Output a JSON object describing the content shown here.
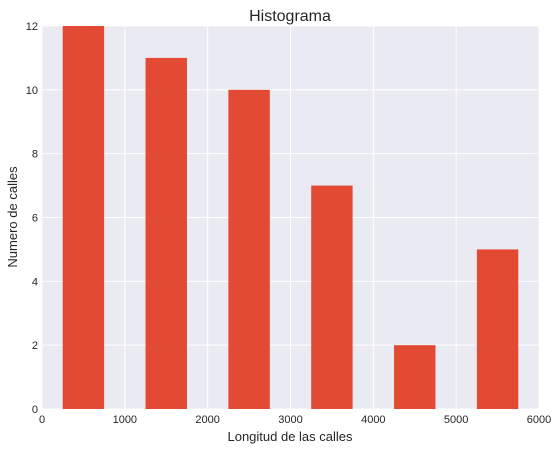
{
  "chart_data": {
    "type": "bar",
    "title": "Histograma",
    "xlabel": "Longitud de las calles",
    "ylabel": "Numero de calles",
    "xlim": [
      0,
      6000
    ],
    "ylim": [
      0,
      12
    ],
    "xticks": [
      0,
      1000,
      2000,
      3000,
      4000,
      5000,
      6000
    ],
    "yticks": [
      0,
      2,
      4,
      6,
      8,
      10,
      12
    ],
    "grid": true,
    "bins": [
      {
        "start": 250,
        "end": 750,
        "value": 12
      },
      {
        "start": 1250,
        "end": 1750,
        "value": 11
      },
      {
        "start": 2250,
        "end": 2750,
        "value": 10
      },
      {
        "start": 3250,
        "end": 3750,
        "value": 7
      },
      {
        "start": 4250,
        "end": 4750,
        "value": 2
      },
      {
        "start": 5250,
        "end": 5750,
        "value": 5
      }
    ],
    "colors": {
      "bar": "#E24A33",
      "plot_background": "#EAEAF2",
      "grid": "#FFFFFF"
    }
  }
}
